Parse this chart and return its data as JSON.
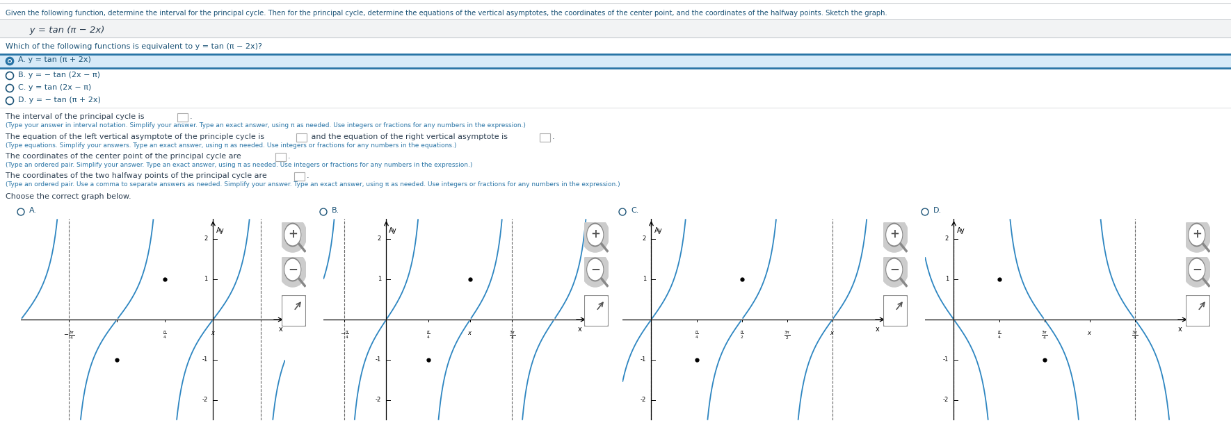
{
  "bg_color": "#ffffff",
  "header_text": "Given the following function, determine the interval for the principal cycle. Then for the principal cycle, determine the equations of the vertical asymptotes, the coordinates of the center point, and the coordinates of the halfway points. Sketch the graph.",
  "function_line": "   y = tan (π − 2x)",
  "question_text": "Which of the following functions is equivalent to y = tan (π − 2x)?",
  "options": [
    {
      "label": "A.",
      "text": " y = tan (π + 2x)",
      "selected": true
    },
    {
      "label": "B.",
      "text": " y = − tan (2x − π)",
      "selected": false
    },
    {
      "label": "C.",
      "text": " y = tan (2x − π)",
      "selected": false
    },
    {
      "label": "D.",
      "text": " y = − tan (π + 2x)",
      "selected": false
    }
  ],
  "interval_label": "The interval of the principal cycle is",
  "interval_note": "(Type your answer in interval notation. Simplify your answer. Type an exact answer, using π as needed. Use integers or fractions for any numbers in the expression.)",
  "asymptote_label1": "The equation of the left vertical asymptote of the principle cycle is",
  "asymptote_label2": "and the equation of the right vertical asymptote is",
  "asymptote_note": "(Type equations. Simplify your answers. Type an exact answer, using π as needed. Use integers or fractions for any numbers in the equations.)",
  "center_label": "The coordinates of the center point of the principal cycle are",
  "center_note": "(Type an ordered pair. Simplify your answer. Type an exact answer, using π as needed. Use integers or fractions for any numbers in the expression.)",
  "halfway_label": "The coordinates of the two halfway points of the principal cycle are",
  "halfway_note": "(Type an ordered pair. Use a comma to separate answers as needed. Simplify your answer. Type an exact answer, using π as needed. Use integers or fractions for any numbers in the expression.)",
  "choose_text": "Choose the correct graph below.",
  "header_color": "#1a5276",
  "option_border": "#2874a6",
  "option_selected_bg": "#d6eaf8",
  "text_dark": "#2c3e50",
  "text_blue": "#1a5276",
  "text_blue_option": "#1a5276",
  "text_gray": "#5d6d7e",
  "text_note_color": "#2874a6",
  "line_color": "#2e86c1",
  "separator_color": "#bdc3c7",
  "graph_labels": [
    "A.",
    "B.",
    "C.",
    "D."
  ]
}
